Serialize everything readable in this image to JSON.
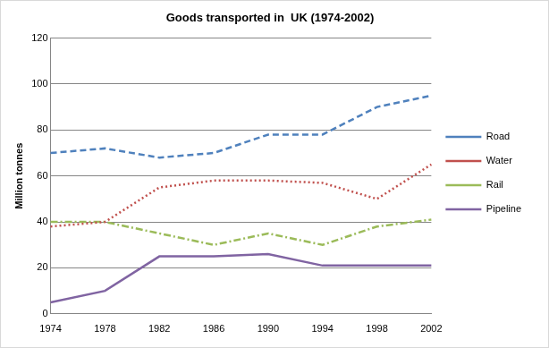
{
  "chart_data": {
    "type": "line",
    "title": "Goods transported in  UK (1974-2002)",
    "y_label": "Million tonnes",
    "categories": [
      "1974",
      "1978",
      "1982",
      "1986",
      "1990",
      "1994",
      "1998",
      "2002"
    ],
    "series": [
      {
        "name": "Road",
        "color": "#4f81bd",
        "line_style": "dashed",
        "values": [
          70,
          72,
          68,
          70,
          78,
          78,
          90,
          95
        ]
      },
      {
        "name": "Water",
        "color": "#c0504d",
        "line_style": "dotted",
        "values": [
          38,
          40,
          55,
          58,
          58,
          57,
          50,
          65
        ]
      },
      {
        "name": "Rail",
        "color": "#9bbb59",
        "line_style": "dashdot",
        "values": [
          40,
          40,
          35,
          30,
          35,
          30,
          38,
          41
        ]
      },
      {
        "name": "Pipeline",
        "color": "#8064a2",
        "line_style": "solid",
        "values": [
          5,
          10,
          25,
          25,
          26,
          21,
          21,
          21
        ]
      }
    ],
    "ylim": [
      0,
      120
    ],
    "yticks": [
      0,
      20,
      40,
      60,
      80,
      100,
      120
    ],
    "grid": true,
    "legend": "right"
  }
}
